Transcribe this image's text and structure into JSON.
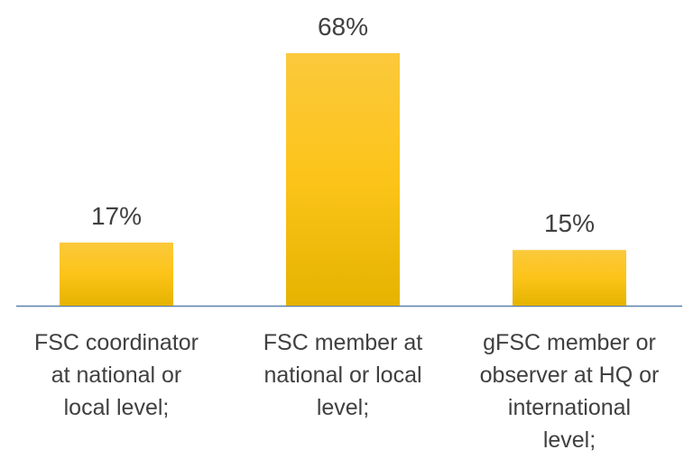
{
  "chart_data": {
    "type": "bar",
    "categories": [
      "FSC coordinator at national or local level;",
      "FSC member at national or local level;",
      "gFSC member or observer at HQ or international level;"
    ],
    "values": [
      17,
      68,
      15
    ],
    "value_labels": [
      "17%",
      "68%",
      "15%"
    ],
    "color": "#fcc419"
  }
}
